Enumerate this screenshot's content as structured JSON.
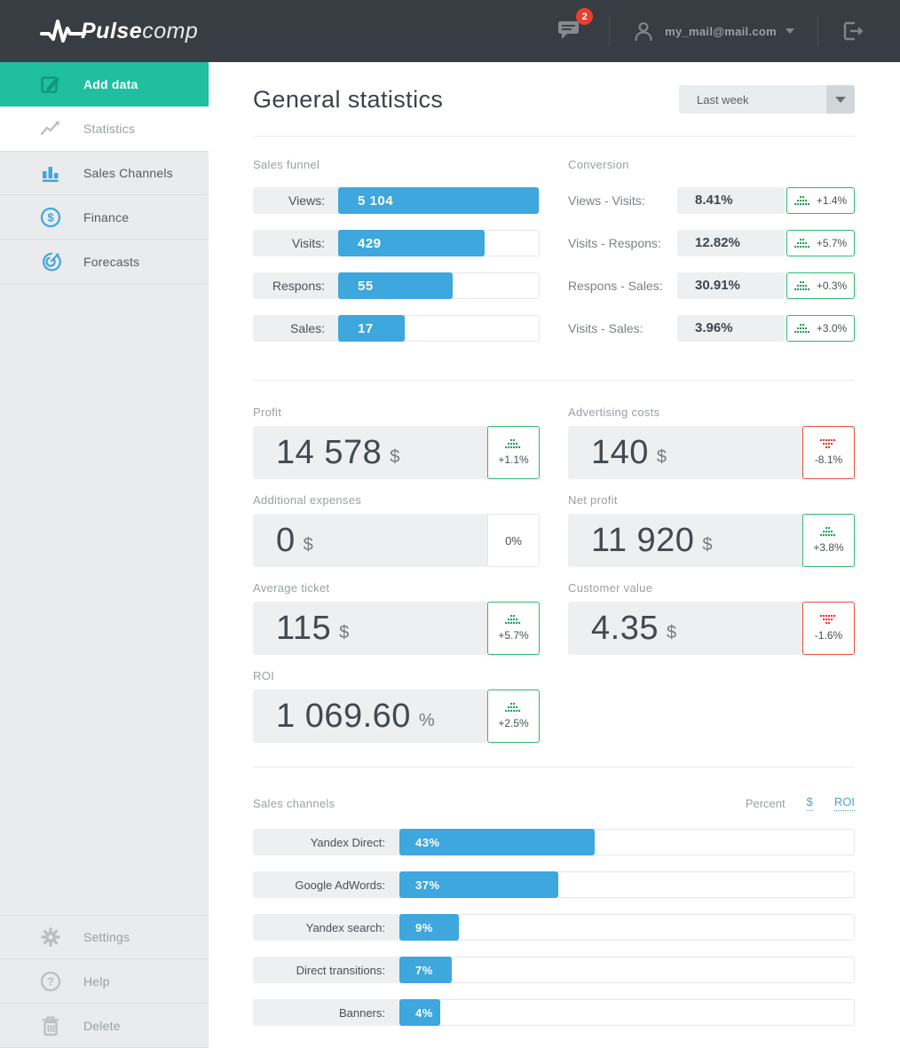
{
  "header": {
    "logo": {
      "bold": "Pulse",
      "light": "comp"
    },
    "notifications": {
      "count": "2"
    },
    "user": {
      "email": "my_mail@mail.com"
    }
  },
  "sidebar": {
    "items": [
      {
        "label": "Add data",
        "icon": "edit-icon",
        "active": true
      },
      {
        "label": "Statistics",
        "icon": "line-chart-icon",
        "active": false
      },
      {
        "label": "Sales Channels",
        "icon": "bar-chart-icon",
        "active": false
      },
      {
        "label": "Finance",
        "icon": "dollar-circle-icon",
        "active": false
      },
      {
        "label": "Forecasts",
        "icon": "target-icon",
        "active": false
      }
    ],
    "footer_items": [
      {
        "label": "Settings",
        "icon": "gear-icon"
      },
      {
        "label": "Help",
        "icon": "help-icon"
      },
      {
        "label": "Delete",
        "icon": "trash-icon"
      }
    ]
  },
  "main": {
    "title": "General statistics",
    "period_select": {
      "value": "Last week"
    },
    "funnel": {
      "heading": "Sales funnel",
      "rows": [
        {
          "label": "Views:",
          "value": "5 104",
          "bar_pct": 100
        },
        {
          "label": "Visits:",
          "value": "429",
          "bar_pct": 73
        },
        {
          "label": "Respons:",
          "value": "55",
          "bar_pct": 57
        },
        {
          "label": "Sales:",
          "value": "17",
          "bar_pct": 33
        }
      ]
    },
    "conversion": {
      "heading": "Conversion",
      "rows": [
        {
          "label": "Views - Visits:",
          "value": "8.41%",
          "delta": "+1.4%",
          "trend": "up"
        },
        {
          "label": "Visits - Respons:",
          "value": "12.82%",
          "delta": "+5.7%",
          "trend": "up"
        },
        {
          "label": "Respons - Sales:",
          "value": "30.91%",
          "delta": "+0.3%",
          "trend": "up"
        },
        {
          "label": "Visits - Sales:",
          "value": "3.96%",
          "delta": "+3.0%",
          "trend": "up"
        }
      ]
    },
    "kpis": [
      {
        "heading": "Profit",
        "value": "14 578",
        "unit": "$",
        "delta": "+1.1%",
        "trend": "up"
      },
      {
        "heading": "Advertising costs",
        "value": "140",
        "unit": "$",
        "delta": "-8.1%",
        "trend": "down"
      },
      {
        "heading": "Additional expenses",
        "value": "0",
        "unit": "$",
        "delta": "0%",
        "trend": "flat"
      },
      {
        "heading": "Net profit",
        "value": "11 920",
        "unit": "$",
        "delta": "+3.8%",
        "trend": "up"
      },
      {
        "heading": "Average ticket",
        "value": "115",
        "unit": "$",
        "delta": "+5.7%",
        "trend": "up"
      },
      {
        "heading": "Customer value",
        "value": "4.35",
        "unit": "$",
        "delta": "-1.6%",
        "trend": "down"
      },
      {
        "heading": "ROI",
        "value": "1 069.60",
        "unit": "%",
        "delta": "+2.5%",
        "trend": "up"
      }
    ],
    "channels": {
      "heading": "Sales channels",
      "modes": [
        {
          "label": "Percent",
          "active": true
        },
        {
          "label": "$",
          "active": false
        },
        {
          "label": "ROI",
          "active": false
        }
      ],
      "rows": [
        {
          "label": "Yandex Direct:",
          "value": "43%",
          "bar_pct": 43
        },
        {
          "label": "Google AdWords:",
          "value": "37%",
          "bar_pct": 35
        },
        {
          "label": "Yandex search:",
          "value": "9%",
          "bar_pct": 13
        },
        {
          "label": "Direct transitions:",
          "value": "7%",
          "bar_pct": 11.5
        },
        {
          "label": "Banners:",
          "value": "4%",
          "bar_pct": 9
        }
      ]
    }
  },
  "colors": {
    "header_bg": "#383d43",
    "accent_green": "#1fbf9f",
    "accent_blue": "#3ea7dd",
    "trend_up": "#2dbb6e",
    "trend_down": "#e8503a",
    "notification_red": "#e8402d"
  }
}
